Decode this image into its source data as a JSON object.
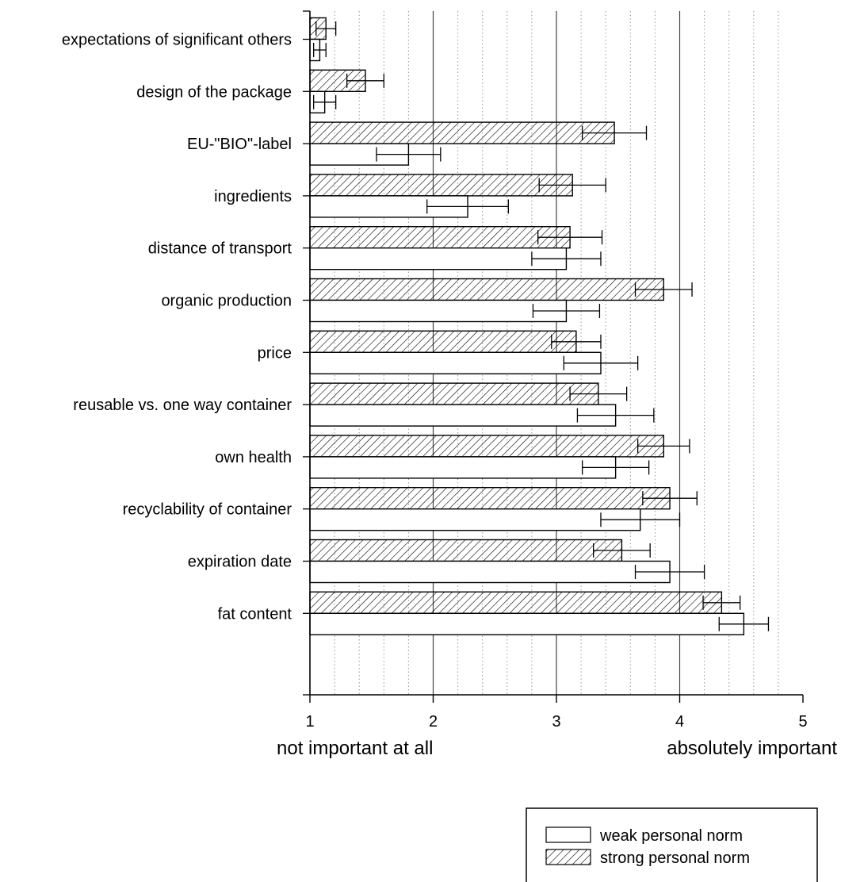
{
  "chart_data": {
    "type": "bar",
    "orientation": "horizontal",
    "categories": [
      "expectations of significant others",
      "design of the package",
      "EU-\"BIO\"-label",
      "ingredients",
      "distance of transport",
      "organic production",
      "price",
      "reusable vs. one way container",
      "own health",
      "recyclability of container",
      "expiration date",
      "fat content"
    ],
    "series": [
      {
        "name": "weak personal norm",
        "pattern": "none",
        "values": [
          1.08,
          1.12,
          1.8,
          2.28,
          3.08,
          3.08,
          3.36,
          3.48,
          3.48,
          3.68,
          3.92,
          4.52
        ],
        "errors": [
          0.05,
          0.09,
          0.26,
          0.33,
          0.28,
          0.27,
          0.3,
          0.31,
          0.27,
          0.32,
          0.28,
          0.2
        ]
      },
      {
        "name": "strong personal norm",
        "pattern": "hatched",
        "values": [
          1.13,
          1.45,
          3.47,
          3.13,
          3.11,
          3.87,
          3.16,
          3.34,
          3.87,
          3.92,
          3.53,
          4.34
        ],
        "errors": [
          0.08,
          0.15,
          0.26,
          0.27,
          0.26,
          0.23,
          0.2,
          0.23,
          0.21,
          0.22,
          0.23,
          0.15
        ]
      }
    ],
    "xlim": [
      1,
      5
    ],
    "xticks": [
      "1",
      "2",
      "3",
      "4",
      "5"
    ],
    "x_end_labels": {
      "low": "not important at all",
      "high": "absolutely important"
    },
    "grid": {
      "major": true,
      "minor_dotted": true
    },
    "legend_position": "bottom-right"
  }
}
